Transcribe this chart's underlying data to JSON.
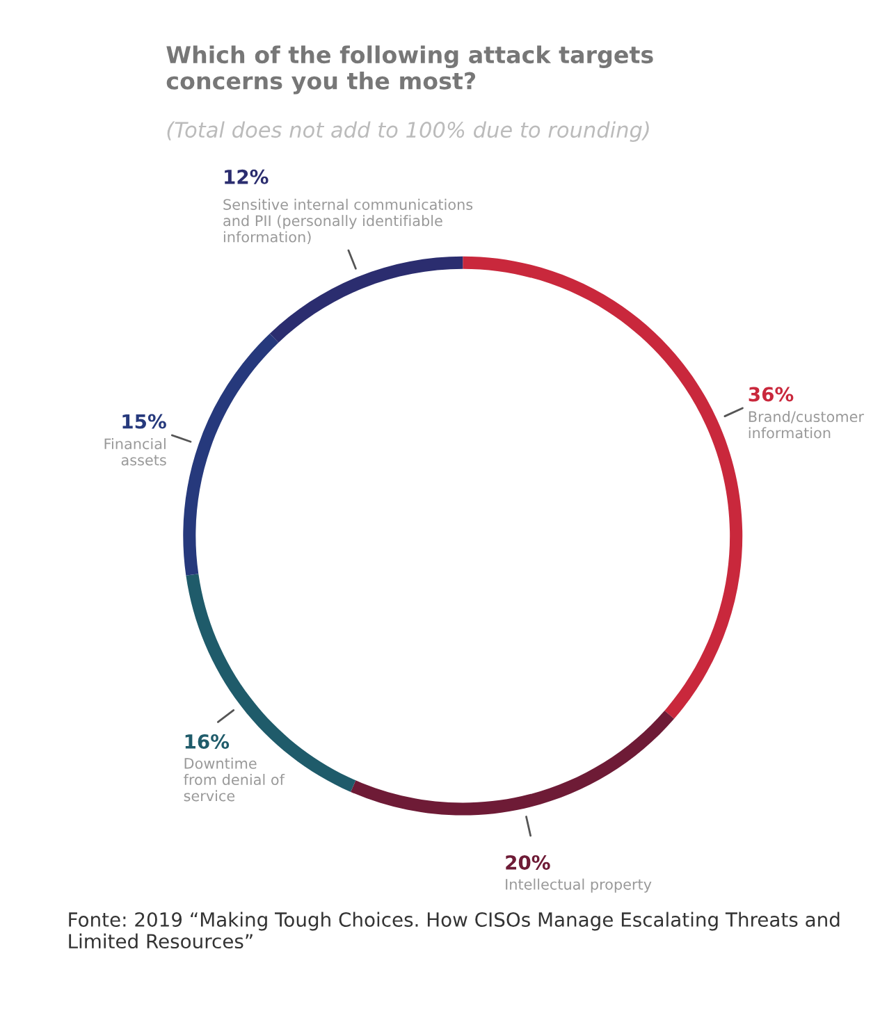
{
  "chart_data": {
    "type": "donut",
    "title": "Which of the following attack targets\nconcerns you the most?",
    "subtitle": "(Total does not add to 100% due to rounding)",
    "categories": [
      "Brand/customer\ninformation",
      "Intellectual property",
      "Downtime\nfrom denial of\nservice",
      "Financial\nassets",
      "Sensitive internal communications\nand PII (personally identifiable\ninformation)"
    ],
    "values": [
      36,
      20,
      16,
      15,
      12
    ],
    "value_labels": [
      "36%",
      "20%",
      "16%",
      "15%",
      "12%"
    ],
    "colors": [
      "#c9283c",
      "#6e1b36",
      "#1f5b6a",
      "#26397c",
      "#2b2d6f"
    ],
    "annotations": [
      "Fonte: 2019 “Making Tough Choices. How CISOs Manage Escalating Threats and Limited Resources”"
    ]
  }
}
